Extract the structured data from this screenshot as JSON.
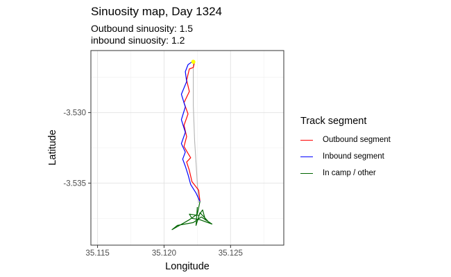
{
  "chart_data": {
    "type": "line",
    "title": "Sinuosity map, Day 1324",
    "subtitle_lines": [
      "Outbound sinuosity: 1.5",
      "inbound sinuosity: 1.2"
    ],
    "xlabel": "Longitude",
    "ylabel": "Latitude",
    "xlim": [
      35.1145,
      35.129
    ],
    "ylim": [
      -3.5394,
      -3.5256
    ],
    "x_ticks": [
      35.115,
      35.12,
      35.125
    ],
    "x_tick_labels": [
      "35.115",
      "35.120",
      "35.125"
    ],
    "y_ticks": [
      -3.53,
      -3.535
    ],
    "y_tick_labels": [
      "-3.530",
      "-3.535"
    ],
    "grid": true,
    "legend_title": "Track segment",
    "legend_position": "right",
    "series": [
      {
        "name": "Outbound segment",
        "color": "#ff0000",
        "points": [
          [
            35.1223,
            -3.5264
          ],
          [
            35.1222,
            -3.5268
          ],
          [
            35.1219,
            -3.5269
          ],
          [
            35.1217,
            -3.5277
          ],
          [
            35.1219,
            -3.5285
          ],
          [
            35.1215,
            -3.5293
          ],
          [
            35.1218,
            -3.5301
          ],
          [
            35.1215,
            -3.5309
          ],
          [
            35.1217,
            -3.5317
          ],
          [
            35.1215,
            -3.5324
          ],
          [
            35.1218,
            -3.5329
          ],
          [
            35.122,
            -3.5332
          ],
          [
            35.1217,
            -3.5335
          ],
          [
            35.1219,
            -3.5341
          ],
          [
            35.1221,
            -3.5349
          ],
          [
            35.1226,
            -3.5355
          ],
          [
            35.1227,
            -3.5363
          ]
        ]
      },
      {
        "name": "Inbound segment",
        "color": "#0000ff",
        "points": [
          [
            35.1227,
            -3.5363
          ],
          [
            35.1224,
            -3.5357
          ],
          [
            35.122,
            -3.5351
          ],
          [
            35.1218,
            -3.5344
          ],
          [
            35.1216,
            -3.5338
          ],
          [
            35.1214,
            -3.5333
          ],
          [
            35.1216,
            -3.5328
          ],
          [
            35.1213,
            -3.5322
          ],
          [
            35.1216,
            -3.5314
          ],
          [
            35.1213,
            -3.5305
          ],
          [
            35.1216,
            -3.5296
          ],
          [
            35.1213,
            -3.5287
          ],
          [
            35.1217,
            -3.5278
          ],
          [
            35.1216,
            -3.5271
          ],
          [
            35.1218,
            -3.5266
          ],
          [
            35.1221,
            -3.5264
          ]
        ]
      },
      {
        "name": "In camp / other",
        "color": "#006400",
        "points": [
          [
            35.1227,
            -3.5363
          ],
          [
            35.1225,
            -3.5372
          ],
          [
            35.1219,
            -3.5376
          ],
          [
            35.1206,
            -3.5383
          ],
          [
            35.121,
            -3.538
          ],
          [
            35.1222,
            -3.5378
          ],
          [
            35.1228,
            -3.5374
          ],
          [
            35.1236,
            -3.5379
          ],
          [
            35.1227,
            -3.5376
          ],
          [
            35.1221,
            -3.5375
          ],
          [
            35.1219,
            -3.5372
          ],
          [
            35.1226,
            -3.5373
          ],
          [
            35.1229,
            -3.5369
          ],
          [
            35.1231,
            -3.5376
          ],
          [
            35.1233,
            -3.5377
          ],
          [
            35.1227,
            -3.5371
          ],
          [
            35.1224,
            -3.538
          ],
          [
            35.1225,
            -3.5367
          ]
        ]
      },
      {
        "name": "",
        "color": "#b3b3b3",
        "points": [
          [
            35.1222,
            -3.5265
          ],
          [
            35.1222,
            -3.5295
          ],
          [
            35.1223,
            -3.532
          ],
          [
            35.1225,
            -3.535
          ],
          [
            35.1226,
            -3.5364
          ]
        ]
      }
    ],
    "markers": [
      {
        "x": 35.1222,
        "y": -3.5264,
        "color": "#ffff00"
      }
    ]
  }
}
